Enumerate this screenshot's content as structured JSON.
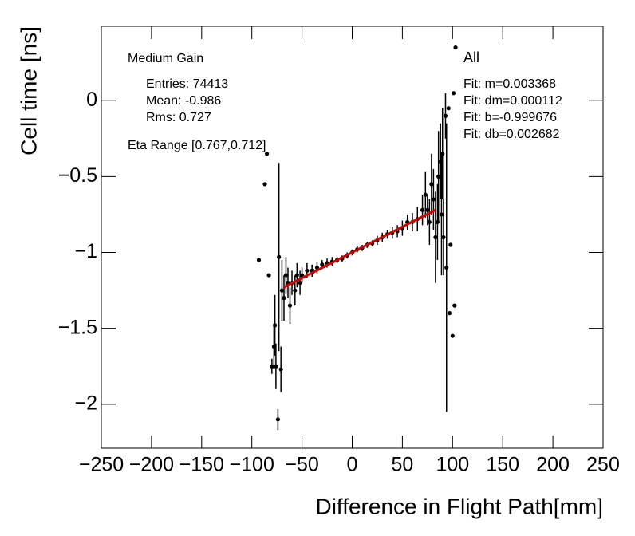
{
  "chart_data": {
    "type": "scatter",
    "x_label": "Difference in Flight Path[mm]",
    "y_label": "Cell time [ns]",
    "notes_left": [
      "Medium Gain",
      "Entries: 74413",
      "Mean: -0.986",
      "Rms: 0.727",
      "Eta Range [0.767,0.712]"
    ],
    "notes_right": [
      "All",
      "Fit: m=0.003368",
      "Fit: dm=0.000112",
      "Fit: b=-0.999676",
      "Fit: db=0.002682"
    ],
    "xlim": [
      -250,
      250
    ],
    "ylim": [
      -2.29,
      0.49
    ],
    "xticks": [
      {
        "value": -250,
        "label": "−250"
      },
      {
        "value": -200,
        "label": "−200"
      },
      {
        "value": -150,
        "label": "−150"
      },
      {
        "value": -100,
        "label": "−100"
      },
      {
        "value": -50,
        "label": "−50"
      },
      0,
      50,
      100,
      150,
      200,
      250
    ],
    "yticks": [
      0,
      {
        "value": -0.5,
        "label": "−0.5"
      },
      {
        "value": -1,
        "label": "−1"
      },
      {
        "value": -1.5,
        "label": "−1.5"
      },
      {
        "value": -2,
        "label": "−2"
      }
    ],
    "color": "#000000",
    "x": [
      -93,
      -87,
      -85,
      -83,
      -80,
      -78,
      -77,
      -76,
      -74,
      -73,
      -71,
      -70,
      -68,
      -66,
      -64,
      -62,
      -60,
      -57,
      -55,
      -52,
      -50,
      -45,
      -40,
      -35,
      -30,
      -25,
      -20,
      -15,
      -10,
      -5,
      0,
      5,
      10,
      15,
      20,
      25,
      30,
      35,
      40,
      45,
      50,
      55,
      60,
      65,
      70,
      73,
      75,
      77,
      79,
      81,
      83,
      85,
      86,
      88,
      89,
      90,
      91,
      93,
      94,
      96,
      97,
      98,
      100,
      101,
      102,
      103
    ],
    "values": [
      -1.05,
      -0.55,
      -0.35,
      -1.15,
      -1.75,
      -1.62,
      -1.48,
      -1.75,
      -2.1,
      -1.03,
      -1.77,
      -1.25,
      -1.3,
      -1.15,
      -1.2,
      -1.35,
      -1.2,
      -1.25,
      -1.15,
      -1.2,
      -1.15,
      -1.12,
      -1.12,
      -1.1,
      -1.08,
      -1.07,
      -1.06,
      -1.05,
      -1.04,
      -1.02,
      -1.0,
      -0.98,
      -0.97,
      -0.95,
      -0.94,
      -0.92,
      -0.9,
      -0.88,
      -0.87,
      -0.86,
      -0.84,
      -0.8,
      -0.8,
      -0.78,
      -0.72,
      -0.62,
      -0.72,
      -0.8,
      -0.55,
      -0.65,
      -0.9,
      -0.8,
      -0.5,
      -0.4,
      -0.75,
      -0.35,
      -0.9,
      -0.1,
      -1.1,
      -0.05,
      -1.4,
      -0.95,
      -1.55,
      0.05,
      -1.35,
      0.35
    ],
    "errors": [
      0,
      0,
      0,
      0,
      0.05,
      0.15,
      0.2,
      0.15,
      0.07,
      0.62,
      0.15,
      0.2,
      0.15,
      0.12,
      0.1,
      0.12,
      0.08,
      0.1,
      0.08,
      0.08,
      0.05,
      0.05,
      0.04,
      0.04,
      0.03,
      0.03,
      0.03,
      0.02,
      0.02,
      0.02,
      0.02,
      0.02,
      0.02,
      0.02,
      0.02,
      0.03,
      0.03,
      0.03,
      0.04,
      0.04,
      0.05,
      0.05,
      0.06,
      0.08,
      0.1,
      0.15,
      0.1,
      0.15,
      0.2,
      0.2,
      0.3,
      0.25,
      0.3,
      0.25,
      0.4,
      0.3,
      0.25,
      0.15,
      0.95,
      0,
      0,
      0,
      0,
      0,
      0,
      0
    ],
    "fit_line": {
      "color": "#cc0000",
      "x": [
        -68,
        83
      ],
      "values": [
        -1.229,
        -0.72
      ]
    }
  }
}
